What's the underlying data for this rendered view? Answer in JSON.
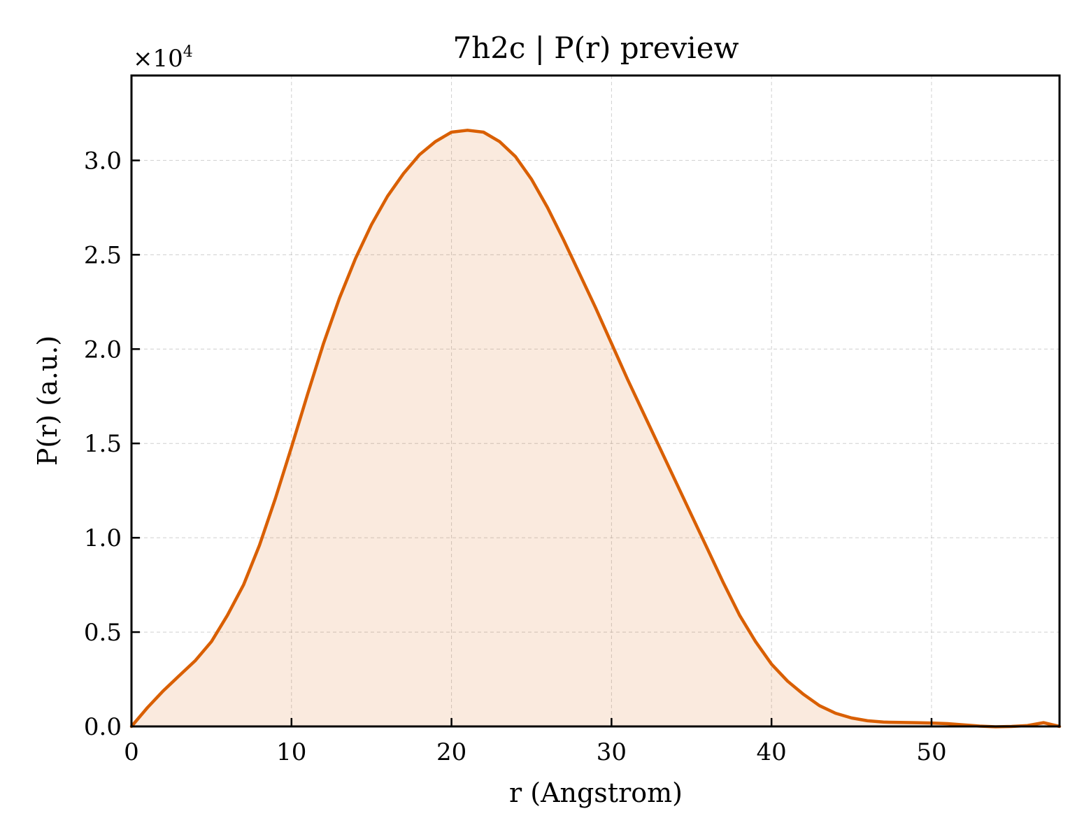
{
  "chart_data": {
    "type": "area",
    "title": "7h2c | P(r) preview",
    "xlabel": "r (Angstrom)",
    "ylabel": "P(r) (a.u.)",
    "y_offset_label": "×10",
    "y_offset_exponent": "4",
    "xlim": [
      0,
      58
    ],
    "ylim": [
      0,
      34500
    ],
    "x_ticks": [
      0,
      10,
      20,
      30,
      40,
      50
    ],
    "y_ticks": [
      0,
      5000,
      10000,
      15000,
      20000,
      25000,
      30000
    ],
    "x_tick_labels": [
      "0",
      "10",
      "20",
      "30",
      "40",
      "50"
    ],
    "y_tick_labels": [
      "0.0",
      "0.5",
      "1.0",
      "1.5",
      "2.0",
      "2.5",
      "3.0"
    ],
    "grid": true,
    "series": [
      {
        "color": "#d95f02",
        "fill_color": "#d95f02",
        "fill_opacity": 0.13,
        "x": [
          0,
          1,
          2,
          3,
          4,
          5,
          6,
          7,
          8,
          9,
          10,
          11,
          12,
          13,
          14,
          15,
          16,
          17,
          18,
          19,
          20,
          21,
          22,
          23,
          24,
          25,
          26,
          27,
          28,
          29,
          30,
          31,
          32,
          33,
          34,
          35,
          36,
          37,
          38,
          39,
          40,
          41,
          42,
          43,
          44,
          45,
          46,
          47,
          48,
          49,
          50,
          51,
          52,
          53,
          54,
          55,
          56,
          57,
          58
        ],
        "values": [
          0,
          1000,
          1900,
          2700,
          3500,
          4500,
          5900,
          7500,
          9600,
          12100,
          14800,
          17600,
          20300,
          22700,
          24800,
          26600,
          28100,
          29300,
          30300,
          31000,
          31500,
          31600,
          31500,
          31000,
          30200,
          29000,
          27500,
          25800,
          24000,
          22200,
          20300,
          18400,
          16600,
          14800,
          13000,
          11200,
          9400,
          7600,
          5900,
          4500,
          3300,
          2400,
          1700,
          1100,
          700,
          450,
          300,
          230,
          210,
          200,
          180,
          150,
          80,
          20,
          -20,
          0,
          50,
          200,
          0
        ]
      }
    ]
  }
}
